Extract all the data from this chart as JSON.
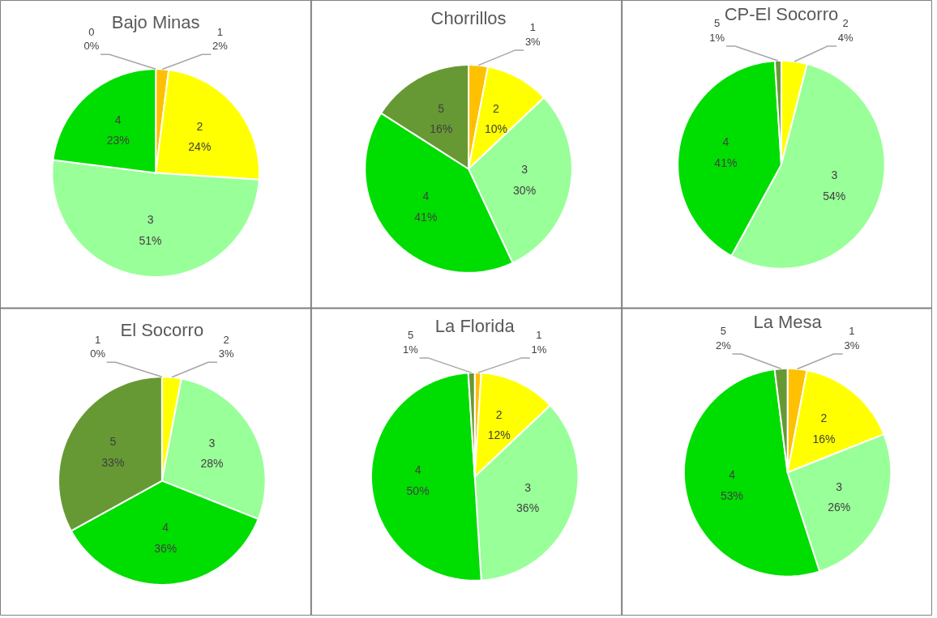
{
  "chart_data": [
    {
      "type": "pie",
      "title": "Bajo Minas",
      "categories": [
        "0",
        "1",
        "2",
        "3",
        "4"
      ],
      "values": [
        0,
        2,
        24,
        51,
        23
      ],
      "colors": [
        "#ed7d31",
        "#ffc000",
        "#ffff00",
        "#99ff99",
        "#00dd00"
      ],
      "value_labels": [
        "0%",
        "2%",
        "24%",
        "51%",
        "23%"
      ]
    },
    {
      "type": "pie",
      "title": "Chorrillos",
      "categories": [
        "1",
        "2",
        "3",
        "4",
        "5"
      ],
      "values": [
        3,
        10,
        30,
        41,
        16
      ],
      "colors": [
        "#ffc000",
        "#ffff00",
        "#99ff99",
        "#00dd00",
        "#669933"
      ],
      "value_labels": [
        "3%",
        "10%",
        "30%",
        "41%",
        "16%"
      ]
    },
    {
      "type": "pie",
      "title": "CP-El Socorro",
      "categories": [
        "2",
        "3",
        "4",
        "5"
      ],
      "values": [
        4,
        54,
        41,
        1
      ],
      "colors": [
        "#ffff00",
        "#99ff99",
        "#00dd00",
        "#669933"
      ],
      "value_labels": [
        "4%",
        "54%",
        "41%",
        "1%"
      ]
    },
    {
      "type": "pie",
      "title": "El Socorro",
      "categories": [
        "1",
        "2",
        "3",
        "4",
        "5"
      ],
      "values": [
        0,
        3,
        28,
        36,
        33
      ],
      "colors": [
        "#ffc000",
        "#ffff00",
        "#99ff99",
        "#00dd00",
        "#669933"
      ],
      "value_labels": [
        "0%",
        "3%",
        "28%",
        "36%",
        "33%"
      ]
    },
    {
      "type": "pie",
      "title": "La Florida",
      "categories": [
        "1",
        "2",
        "3",
        "4",
        "5"
      ],
      "values": [
        1,
        12,
        36,
        50,
        1
      ],
      "colors": [
        "#ffc000",
        "#ffff00",
        "#99ff99",
        "#00dd00",
        "#669933"
      ],
      "value_labels": [
        "1%",
        "12%",
        "36%",
        "50%",
        "1%"
      ]
    },
    {
      "type": "pie",
      "title": "La Mesa",
      "categories": [
        "1",
        "2",
        "3",
        "4",
        "5"
      ],
      "values": [
        3,
        16,
        26,
        53,
        2
      ],
      "colors": [
        "#ffc000",
        "#ffff00",
        "#99ff99",
        "#00dd00",
        "#669933"
      ],
      "value_labels": [
        "3%",
        "16%",
        "26%",
        "53%",
        "2%"
      ]
    }
  ]
}
